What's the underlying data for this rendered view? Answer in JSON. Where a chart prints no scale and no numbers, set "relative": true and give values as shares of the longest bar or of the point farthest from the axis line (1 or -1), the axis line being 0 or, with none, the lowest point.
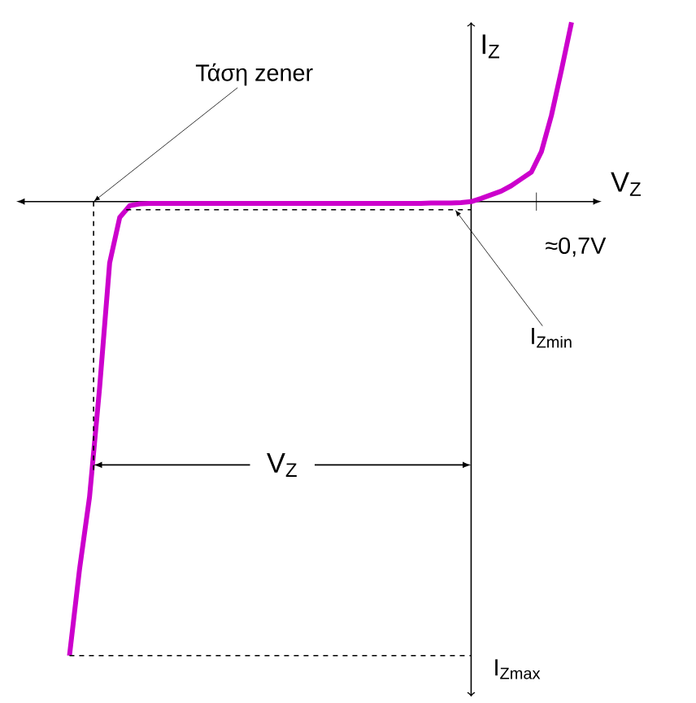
{
  "chart_data": {
    "type": "line",
    "relative": true,
    "xlabel": "V$_{Z}$",
    "ylabel": "I$_{Z}$",
    "marker": "none",
    "line_style": "solid",
    "categories": [
      null,
      null,
      null,
      null,
      null,
      null,
      null,
      null,
      null,
      null,
      null,
      null,
      null,
      null,
      null,
      null,
      null,
      null,
      null,
      null,
      null,
      null,
      null,
      null,
      null,
      null,
      null,
      null,
      null,
      null,
      null,
      null,
      null,
      null,
      null,
      null,
      null,
      null,
      null,
      null,
      null,
      null,
      null,
      null,
      null,
      null,
      null,
      null,
      null,
      null,
      null
    ],
    "series": [
      {
        "color": "#cc00cc",
        "values": [
          -1,
          -0.81,
          -0.65,
          -0.41,
          -0.135,
          -0.035,
          -0.009,
          -0.005,
          -0.004,
          -0.004,
          -0.004,
          -0.004,
          -0.004,
          -0.004,
          -0.004,
          -0.004,
          -0.004,
          -0.004,
          -0.004,
          -0.004,
          -0.004,
          -0.004,
          -0.004,
          -0.004,
          -0.004,
          -0.004,
          -0.004,
          -0.004,
          -0.004,
          -0.004,
          -0.004,
          -0.004,
          -0.004,
          -0.004,
          -0.004,
          -0.004,
          -0.003,
          -0.003,
          -0.003,
          -0.002,
          0,
          0.007,
          0.015,
          0.023,
          0.035,
          0.05,
          0.065,
          0.11,
          0.19,
          0.29,
          0.395
        ]
      }
    ],
    "ref_lines": [
      {
        "axis": "y",
        "value": -0.018,
        "label": "I$_{Zmin}$",
        "line_style": "dashed"
      },
      {
        "axis": "y",
        "value": -1,
        "label": "I$_{Zmax}$",
        "line_style": "dashed"
      }
    ],
    "annotations": [
      "Τάση zener",
      "≈0,7V",
      "V$_{Z}$"
    ]
  }
}
